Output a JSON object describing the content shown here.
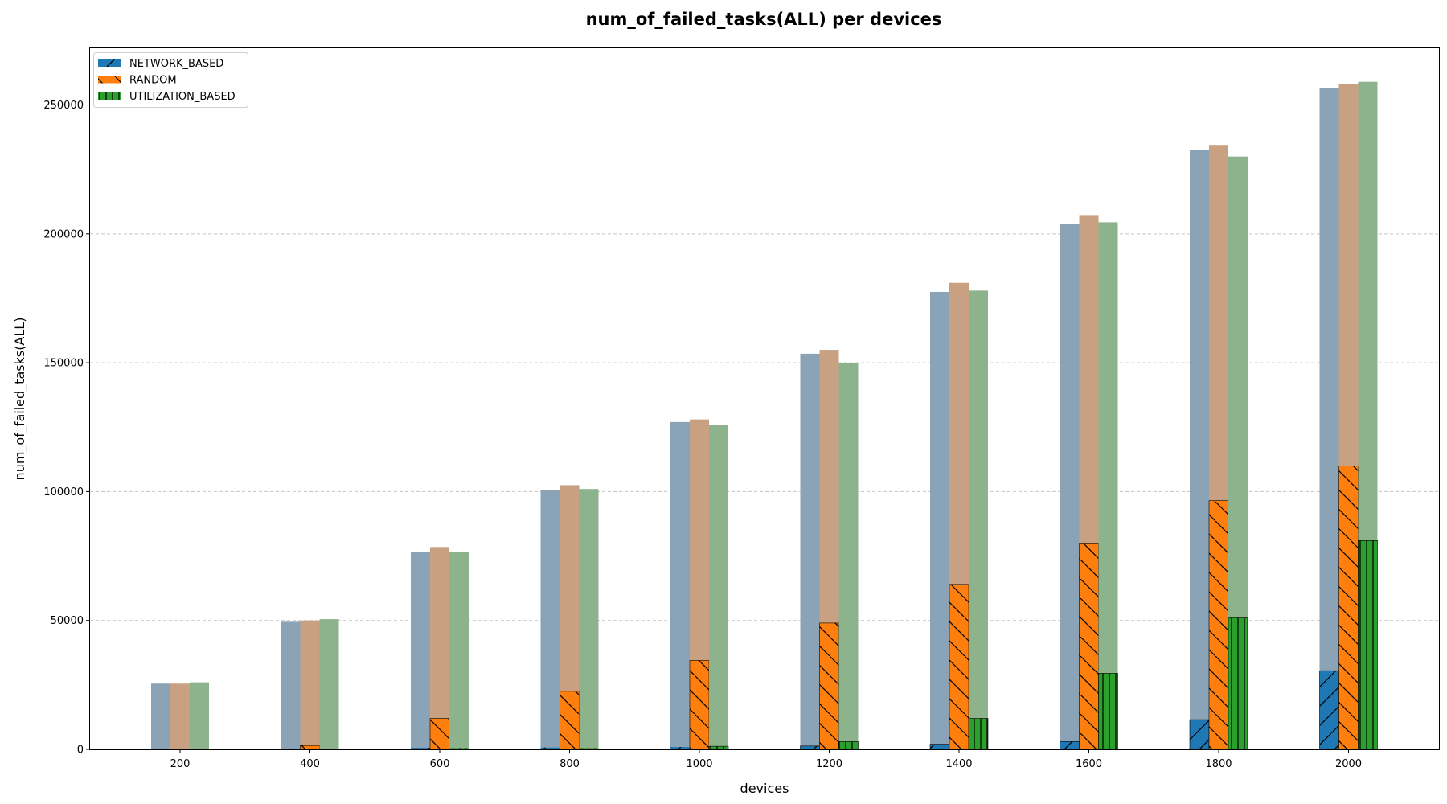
{
  "chart_data": {
    "type": "bar",
    "title": "num_of_failed_tasks(ALL) per devices",
    "xlabel": "devices",
    "ylabel": "num_of_failed_tasks(ALL)",
    "categories": [
      "200",
      "400",
      "600",
      "800",
      "1000",
      "1200",
      "1400",
      "1600",
      "1800",
      "2000"
    ],
    "ylim": [
      0,
      272000
    ],
    "yticks": [
      0,
      50000,
      100000,
      150000,
      200000,
      250000
    ],
    "grid": "y-dashed",
    "legend_position": "top-left",
    "series": [
      {
        "name": "NETWORK_BASED",
        "color": "#1f77b4",
        "background_color": "#8aa3b6",
        "hatch": "forward-diagonal",
        "total_values": [
          25500,
          49500,
          76500,
          100500,
          127000,
          153500,
          177500,
          204000,
          232500,
          256500
        ],
        "values": [
          0,
          200,
          600,
          700,
          900,
          1300,
          2000,
          3000,
          11500,
          30500
        ]
      },
      {
        "name": "RANDOM",
        "color": "#ff7f0e",
        "background_color": "#c8a183",
        "hatch": "back-diagonal",
        "total_values": [
          25500,
          50000,
          78500,
          102500,
          128000,
          155000,
          181000,
          207000,
          234500,
          258000
        ],
        "values": [
          0,
          1500,
          12000,
          22500,
          34500,
          49000,
          64000,
          80000,
          96500,
          110000
        ]
      },
      {
        "name": "UTILIZATION_BASED",
        "color": "#2ca02c",
        "background_color": "#8db38c",
        "hatch": "vertical",
        "total_values": [
          26000,
          50500,
          76500,
          101000,
          126000,
          150000,
          178000,
          204500,
          230000,
          259000
        ],
        "values": [
          0,
          200,
          500,
          500,
          1200,
          3000,
          12000,
          29500,
          51000,
          81000
        ]
      }
    ]
  }
}
